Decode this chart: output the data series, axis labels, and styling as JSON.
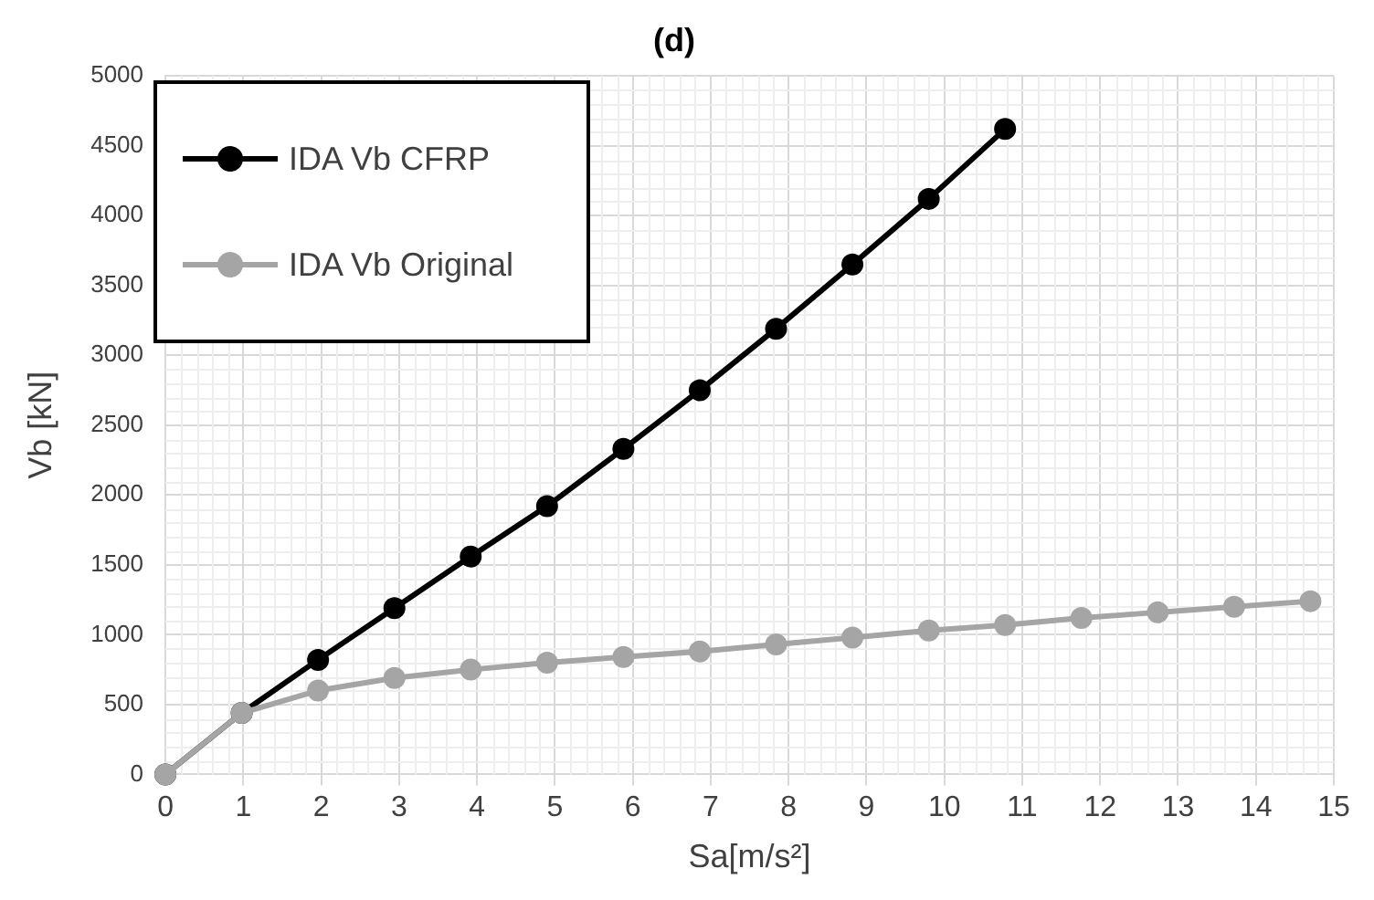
{
  "chart_data": {
    "type": "line",
    "title": "(d)",
    "xlabel": "Sa[m/s²]",
    "ylabel": "Vb [kN]",
    "xlim": [
      0,
      15
    ],
    "xticks": [
      0,
      1,
      2,
      3,
      4,
      5,
      6,
      7,
      8,
      9,
      10,
      11,
      12,
      13,
      14,
      15
    ],
    "ylim": [
      0,
      5000
    ],
    "yticks": [
      0,
      500,
      1000,
      1500,
      2000,
      2500,
      3000,
      3500,
      4000,
      4500,
      5000
    ],
    "grid": true,
    "legend": "top left",
    "marker": "circle",
    "line_style": "solid",
    "series": [
      {
        "name": "IDA Vb CFRP",
        "color": "#000000",
        "x": [
          0,
          0.98,
          1.96,
          2.94,
          3.92,
          4.9,
          5.88,
          6.86,
          7.84,
          8.82,
          9.8,
          10.78
        ],
        "values": [
          0,
          440,
          820,
          1190,
          1560,
          1920,
          2330,
          2750,
          3190,
          3650,
          4120,
          4620
        ]
      },
      {
        "name": "IDA Vb Original",
        "color": "#a5a5a5",
        "x": [
          0,
          0.98,
          1.96,
          2.94,
          3.92,
          4.9,
          5.88,
          6.86,
          7.84,
          8.82,
          9.8,
          10.78,
          11.76,
          12.74,
          13.72,
          14.7
        ],
        "values": [
          0,
          440,
          600,
          690,
          750,
          800,
          840,
          880,
          930,
          980,
          1030,
          1070,
          1120,
          1160,
          1200,
          1240
        ]
      }
    ]
  }
}
